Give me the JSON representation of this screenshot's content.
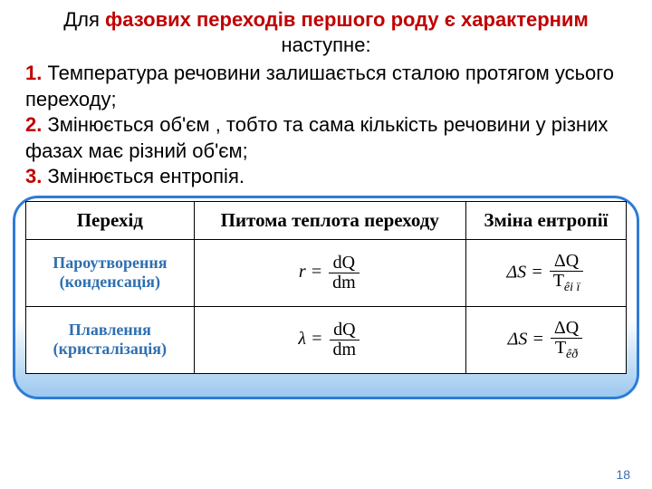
{
  "heading": {
    "pre": "Для ",
    "bold": "фазових переходів першого роду є характерним",
    "post": " наступне:"
  },
  "items": [
    {
      "num": "1.",
      "text": " Температура речовини залишається сталою протягом усього переходу;"
    },
    {
      "num": "2.",
      "text": " Змінюється об'єм , тобто та сама кількість речовини у різних фазах має різний об'єм;"
    },
    {
      "num": "3.",
      "text": " Змінюється ентропія."
    }
  ],
  "table": {
    "headers": [
      "Перехід",
      "Питома теплота переходу",
      "Зміна ентропії"
    ],
    "rows": [
      {
        "label": "Пароутворення (конденсація)",
        "heat": {
          "lhs": "r",
          "numerator": "dQ",
          "denominator": "dm"
        },
        "entropy": {
          "lhs": "ΔS",
          "numerator": "ΔQ",
          "den_main": "T",
          "den_sub": "êi ï"
        }
      },
      {
        "label": "Плавлення (кристалізація)",
        "heat": {
          "lhs": "λ",
          "numerator": "dQ",
          "denominator": "dm"
        },
        "entropy": {
          "lhs": "ΔS",
          "numerator": "ΔQ",
          "den_main": "T",
          "den_sub": "êð"
        }
      }
    ]
  },
  "pagenum": "18",
  "colors": {
    "accent_red": "#c00000",
    "accent_blue": "#2e6fb0",
    "border_blue": "#2e7cd6",
    "grad_bottom": "#9cc8ef"
  }
}
